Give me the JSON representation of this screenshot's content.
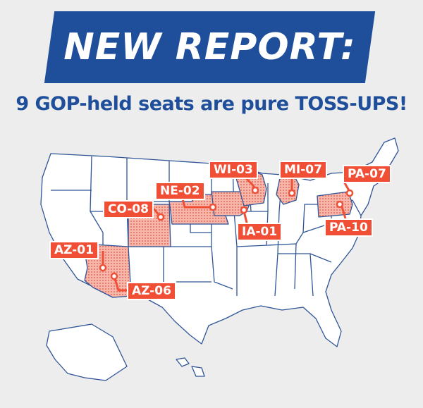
{
  "header": {
    "banner_text": "NEW REPORT:",
    "subtitle": "9 GOP-held seats are pure TOSS-UPS!"
  },
  "colors": {
    "banner_bg": "#1f4f9b",
    "subtitle": "#1f4f9b",
    "state_border": "#2f5597",
    "state_fill": "#ffffff",
    "highlight_fill": "#f6b8ac",
    "highlight_dot": "#e9523d",
    "label_bg": "#f04e35",
    "background": "#ededed"
  },
  "districts": [
    {
      "id": "AZ-01",
      "state": "Arizona"
    },
    {
      "id": "AZ-06",
      "state": "Arizona"
    },
    {
      "id": "CO-08",
      "state": "Colorado"
    },
    {
      "id": "NE-02",
      "state": "Nebraska"
    },
    {
      "id": "WI-03",
      "state": "Wisconsin"
    },
    {
      "id": "IA-01",
      "state": "Iowa"
    },
    {
      "id": "MI-07",
      "state": "Michigan"
    },
    {
      "id": "PA-07",
      "state": "Pennsylvania"
    },
    {
      "id": "PA-10",
      "state": "Pennsylvania"
    }
  ]
}
